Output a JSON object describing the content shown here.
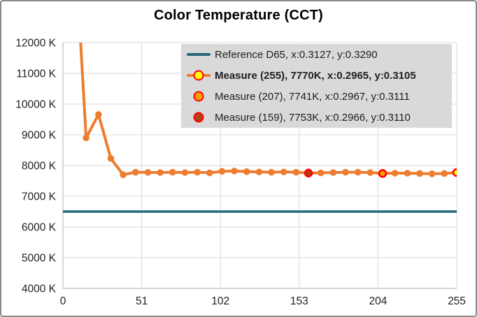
{
  "title": "Color Temperature (CCT)",
  "legend": {
    "background": "#d9d9d9",
    "entries": [
      {
        "label": "Reference D65, x:0.3127, y:0.3290",
        "bold": false,
        "swatch": "line",
        "line_color": "#266878",
        "fill": null,
        "ring": null
      },
      {
        "label": "Measure (255), 7770K, x:0.2965, y:0.3105",
        "bold": true,
        "swatch": "line-circle",
        "line_color": "#ED7D31",
        "fill": "#FFFF00",
        "ring": "#FF0000"
      },
      {
        "label": "Measure (207), 7741K, x:0.2967, y:0.3111",
        "bold": false,
        "swatch": "circle",
        "line_color": null,
        "fill": "#F2A104",
        "ring": "#FF0000"
      },
      {
        "label": "Measure (159), 7753K, x:0.2966, y:0.3110",
        "bold": false,
        "swatch": "circle",
        "line_color": null,
        "fill": "#B04214",
        "ring": "#FF0000"
      }
    ]
  },
  "chart_data": {
    "type": "line",
    "title": "Color Temperature (CCT)",
    "xlabel": "",
    "ylabel": "",
    "xlim": [
      0,
      255
    ],
    "ylim": [
      4000,
      12000
    ],
    "grid": true,
    "legend_position": "top-right-inside",
    "x_tick_values": [
      0,
      51,
      102,
      153,
      204,
      255
    ],
    "x_tick_labels": [
      "0",
      "51",
      "102",
      "153",
      "204",
      "255"
    ],
    "y_tick_values": [
      4000,
      5000,
      6000,
      7000,
      8000,
      9000,
      10000,
      11000,
      12000
    ],
    "y_tick_labels": [
      "4000 K",
      "5000 K",
      "6000 K",
      "7000 K",
      "8000 K",
      "9000 K",
      "10000 K",
      "11000 K",
      "12000 K"
    ],
    "reference": {
      "name": "Reference D65",
      "value": 6500,
      "color": "#266878",
      "x_chromaticity": 0.3127,
      "y_chromaticity": 0.329
    },
    "series": [
      {
        "name": "Measure",
        "color": "#ED7D31",
        "x": [
          7,
          15,
          23,
          31,
          39,
          47,
          55,
          63,
          71,
          79,
          87,
          95,
          103,
          111,
          119,
          127,
          135,
          143,
          151,
          159,
          167,
          175,
          183,
          191,
          199,
          207,
          215,
          223,
          231,
          239,
          247,
          255
        ],
        "y": [
          15900,
          8900,
          9660,
          8230,
          7700,
          7780,
          7775,
          7770,
          7780,
          7770,
          7780,
          7760,
          7810,
          7820,
          7800,
          7790,
          7780,
          7790,
          7780,
          7753,
          7760,
          7770,
          7780,
          7780,
          7770,
          7741,
          7750,
          7750,
          7740,
          7730,
          7740,
          7770
        ],
        "highlight_points": [
          {
            "x": 159,
            "y": 7753,
            "fill": "#B04214",
            "ring": "#FF0000",
            "label": "Measure (159)"
          },
          {
            "x": 207,
            "y": 7741,
            "fill": "#F2A104",
            "ring": "#FF0000",
            "label": "Measure (207)"
          },
          {
            "x": 255,
            "y": 7770,
            "fill": "#FFFF00",
            "ring": "#FF0000",
            "label": "Measure (255)"
          }
        ]
      }
    ],
    "colors": {
      "grid": "#d9d9d9",
      "axis": "#bfbfbf",
      "tick_text": "#1f1f1f",
      "series": "#ED7D31",
      "reference": "#266878"
    }
  }
}
